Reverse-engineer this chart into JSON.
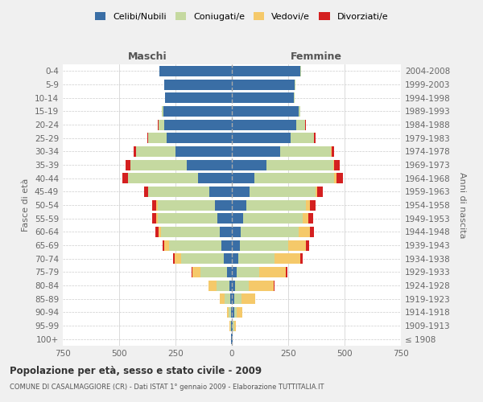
{
  "age_groups": [
    "100+",
    "95-99",
    "90-94",
    "85-89",
    "80-84",
    "75-79",
    "70-74",
    "65-69",
    "60-64",
    "55-59",
    "50-54",
    "45-49",
    "40-44",
    "35-39",
    "30-34",
    "25-29",
    "20-24",
    "15-19",
    "10-14",
    "5-9",
    "0-4"
  ],
  "birth_years": [
    "≤ 1908",
    "1909-1913",
    "1914-1918",
    "1919-1923",
    "1924-1928",
    "1929-1933",
    "1934-1938",
    "1939-1943",
    "1944-1948",
    "1949-1953",
    "1954-1958",
    "1959-1963",
    "1964-1968",
    "1969-1973",
    "1974-1978",
    "1979-1983",
    "1984-1988",
    "1989-1993",
    "1994-1998",
    "1999-2003",
    "2004-2008"
  ],
  "colors": {
    "celibi": "#3a6ea5",
    "coniugati": "#c5d9a0",
    "vedovi": "#f5c96a",
    "divorziati": "#d42020"
  },
  "males": {
    "celibi": [
      2,
      4,
      5,
      8,
      12,
      20,
      35,
      45,
      55,
      65,
      75,
      100,
      150,
      200,
      250,
      290,
      300,
      305,
      295,
      300,
      320
    ],
    "coniugati": [
      1,
      3,
      8,
      25,
      55,
      120,
      190,
      235,
      260,
      265,
      255,
      270,
      310,
      250,
      175,
      80,
      25,
      5,
      1,
      1,
      1
    ],
    "vedovi": [
      1,
      3,
      8,
      20,
      35,
      35,
      30,
      20,
      10,
      5,
      5,
      3,
      2,
      1,
      1,
      1,
      1,
      0,
      0,
      0,
      0
    ],
    "divorziati": [
      0,
      0,
      0,
      1,
      2,
      3,
      5,
      8,
      15,
      20,
      20,
      18,
      25,
      20,
      10,
      5,
      2,
      0,
      0,
      0,
      0
    ]
  },
  "females": {
    "nubili": [
      2,
      5,
      10,
      12,
      15,
      20,
      30,
      35,
      40,
      50,
      65,
      80,
      100,
      155,
      215,
      260,
      285,
      295,
      275,
      280,
      305
    ],
    "coniugati": [
      1,
      4,
      12,
      30,
      60,
      100,
      160,
      215,
      255,
      265,
      265,
      290,
      355,
      295,
      225,
      105,
      40,
      8,
      2,
      1,
      1
    ],
    "vedovi": [
      2,
      8,
      25,
      60,
      110,
      120,
      115,
      80,
      50,
      25,
      15,
      10,
      8,
      5,
      2,
      1,
      1,
      0,
      0,
      0,
      0
    ],
    "divorziati": [
      0,
      0,
      1,
      2,
      3,
      5,
      8,
      12,
      18,
      22,
      25,
      22,
      30,
      25,
      12,
      5,
      2,
      0,
      0,
      0,
      0
    ]
  },
  "title": "Popolazione per età, sesso e stato civile - 2009",
  "subtitle": "COMUNE DI CASALMAGGIORE (CR) - Dati ISTAT 1° gennaio 2009 - Elaborazione TUTTITALIA.IT",
  "xlabel_left": "Maschi",
  "xlabel_right": "Femmine",
  "ylabel_left": "Fasce di età",
  "ylabel_right": "Anni di nascita",
  "legend_labels": [
    "Celibi/Nubili",
    "Coniugati/e",
    "Vedovi/e",
    "Divorziati/e"
  ],
  "xlim": 750,
  "bg_color": "#f0f0f0",
  "plot_bg_color": "#ffffff"
}
